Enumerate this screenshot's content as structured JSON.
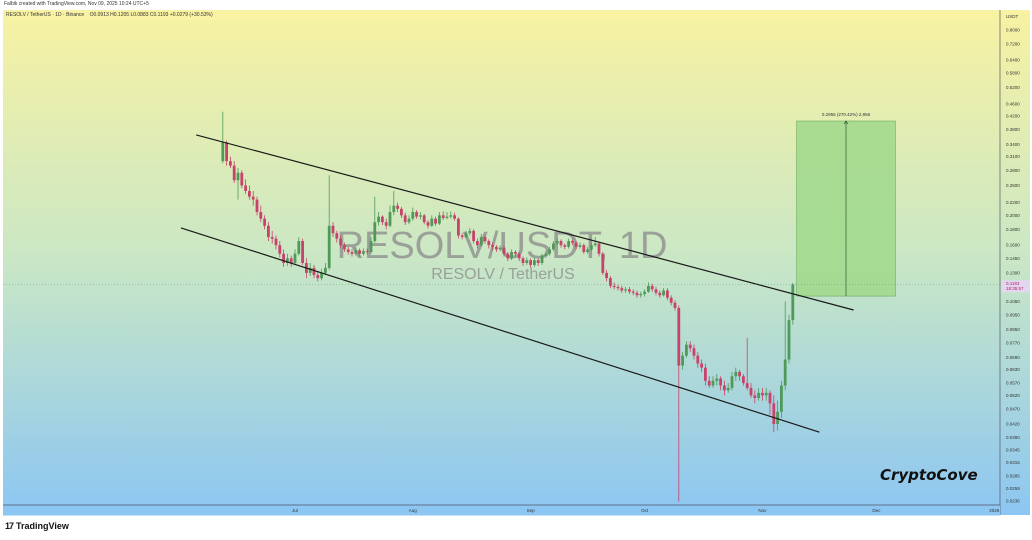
{
  "header": {
    "credit": "Falbik created with TradingView.com, Nov 09, 2025 10:24 UTC+5",
    "symbol_line": "RESOLV / TetherUS · 1D · Binance",
    "ohlc": "O0.0913 H0.1205 L0.0883 C0.1193 +0.0279 (+30.53%)"
  },
  "watermark": {
    "symbol": "RESOLV/USDT, 1D",
    "name": "RESOLV / TetherUS"
  },
  "signature": "CryptoCove",
  "footer": {
    "brand": "TradingView"
  },
  "colors": {
    "up": "#4f9a58",
    "down": "#c8436b",
    "bg_top": "#f8f2a2",
    "bg_mid": "#c9e7c6",
    "bg_bottom": "#8cc6f2",
    "measure_fill": "#9fd88a"
  },
  "chart_data": {
    "type": "candlestick",
    "interval": "1D",
    "y_scale": "log",
    "y_unit": "USDT",
    "ylim": [
      0.0236,
      0.8
    ],
    "y_ticks": [
      "0.8000",
      "0.7200",
      "0.6400",
      "0.5800",
      "0.5200",
      "0.4600",
      "0.4200",
      "0.3800",
      "0.3400",
      "0.3100",
      "0.2800",
      "0.2500",
      "0.2200",
      "0.2000",
      "0.1800",
      "0.1600",
      "0.1450",
      "0.1300",
      "0.1050",
      "0.0950",
      "0.0850",
      "0.0770",
      "0.0690",
      "0.0630",
      "0.0570",
      "0.0520",
      "0.0470",
      "0.0420",
      "0.0380",
      "0.0345",
      "0.0315",
      "0.0285",
      "0.0259",
      "0.0236"
    ],
    "x_ticks": [
      {
        "label": "Jul",
        "date": "2025-07-01"
      },
      {
        "label": "Aug",
        "date": "2025-08-01"
      },
      {
        "label": "Sep",
        "date": "2025-09-01"
      },
      {
        "label": "Oct",
        "date": "2025-10-01"
      },
      {
        "label": "Nov",
        "date": "2025-11-01"
      },
      {
        "label": "Dec",
        "date": "2025-12-01"
      },
      {
        "label": "2026",
        "date": "2026-01-01"
      }
    ],
    "last_price": {
      "value": "0.1193",
      "countdown": "18:35:57"
    },
    "start_date": "2025-06-12",
    "ohlc": [
      [
        0.3,
        0.434,
        0.295,
        0.345
      ],
      [
        0.345,
        0.35,
        0.29,
        0.3
      ],
      [
        0.3,
        0.31,
        0.285,
        0.29
      ],
      [
        0.29,
        0.3,
        0.255,
        0.26
      ],
      [
        0.26,
        0.285,
        0.225,
        0.275
      ],
      [
        0.275,
        0.28,
        0.245,
        0.25
      ],
      [
        0.25,
        0.262,
        0.235,
        0.24
      ],
      [
        0.24,
        0.25,
        0.225,
        0.23
      ],
      [
        0.23,
        0.24,
        0.215,
        0.225
      ],
      [
        0.225,
        0.23,
        0.2,
        0.205
      ],
      [
        0.205,
        0.215,
        0.19,
        0.195
      ],
      [
        0.195,
        0.2,
        0.18,
        0.185
      ],
      [
        0.185,
        0.19,
        0.165,
        0.17
      ],
      [
        0.17,
        0.178,
        0.162,
        0.168
      ],
      [
        0.168,
        0.172,
        0.155,
        0.16
      ],
      [
        0.16,
        0.165,
        0.146,
        0.15
      ],
      [
        0.15,
        0.155,
        0.136,
        0.14
      ],
      [
        0.14,
        0.15,
        0.137,
        0.145
      ],
      [
        0.145,
        0.148,
        0.136,
        0.14
      ],
      [
        0.14,
        0.155,
        0.138,
        0.15
      ],
      [
        0.15,
        0.17,
        0.148,
        0.165
      ],
      [
        0.165,
        0.168,
        0.138,
        0.14
      ],
      [
        0.14,
        0.145,
        0.125,
        0.13
      ],
      [
        0.13,
        0.14,
        0.127,
        0.135
      ],
      [
        0.135,
        0.138,
        0.125,
        0.128
      ],
      [
        0.128,
        0.132,
        0.122,
        0.125
      ],
      [
        0.125,
        0.134,
        0.123,
        0.13
      ],
      [
        0.13,
        0.14,
        0.128,
        0.135
      ],
      [
        0.135,
        0.27,
        0.133,
        0.185
      ],
      [
        0.185,
        0.19,
        0.17,
        0.175
      ],
      [
        0.175,
        0.178,
        0.163,
        0.168
      ],
      [
        0.168,
        0.172,
        0.157,
        0.16
      ],
      [
        0.16,
        0.163,
        0.152,
        0.155
      ],
      [
        0.155,
        0.158,
        0.149,
        0.152
      ],
      [
        0.152,
        0.155,
        0.147,
        0.15
      ],
      [
        0.15,
        0.158,
        0.148,
        0.154
      ],
      [
        0.154,
        0.156,
        0.147,
        0.15
      ],
      [
        0.15,
        0.156,
        0.148,
        0.153
      ],
      [
        0.153,
        0.156,
        0.149,
        0.152
      ],
      [
        0.152,
        0.17,
        0.15,
        0.165
      ],
      [
        0.165,
        0.23,
        0.163,
        0.19
      ],
      [
        0.19,
        0.205,
        0.185,
        0.198
      ],
      [
        0.198,
        0.2,
        0.186,
        0.19
      ],
      [
        0.19,
        0.195,
        0.18,
        0.185
      ],
      [
        0.185,
        0.215,
        0.183,
        0.205
      ],
      [
        0.205,
        0.24,
        0.2,
        0.215
      ],
      [
        0.215,
        0.22,
        0.205,
        0.21
      ],
      [
        0.21,
        0.213,
        0.196,
        0.2
      ],
      [
        0.2,
        0.204,
        0.186,
        0.19
      ],
      [
        0.19,
        0.2,
        0.187,
        0.195
      ],
      [
        0.195,
        0.212,
        0.192,
        0.205
      ],
      [
        0.205,
        0.208,
        0.195,
        0.198
      ],
      [
        0.198,
        0.205,
        0.194,
        0.2
      ],
      [
        0.2,
        0.202,
        0.187,
        0.19
      ],
      [
        0.19,
        0.193,
        0.181,
        0.185
      ],
      [
        0.185,
        0.2,
        0.183,
        0.195
      ],
      [
        0.195,
        0.198,
        0.185,
        0.188
      ],
      [
        0.188,
        0.205,
        0.186,
        0.2
      ],
      [
        0.2,
        0.206,
        0.193,
        0.196
      ],
      [
        0.196,
        0.205,
        0.194,
        0.198
      ],
      [
        0.198,
        0.206,
        0.195,
        0.2
      ],
      [
        0.2,
        0.204,
        0.192,
        0.195
      ],
      [
        0.195,
        0.197,
        0.168,
        0.172
      ],
      [
        0.172,
        0.175,
        0.167,
        0.17
      ],
      [
        0.17,
        0.178,
        0.168,
        0.175
      ],
      [
        0.175,
        0.182,
        0.172,
        0.178
      ],
      [
        0.178,
        0.18,
        0.162,
        0.165
      ],
      [
        0.165,
        0.168,
        0.156,
        0.16
      ],
      [
        0.16,
        0.174,
        0.158,
        0.17
      ],
      [
        0.17,
        0.172,
        0.162,
        0.165
      ],
      [
        0.165,
        0.167,
        0.156,
        0.16
      ],
      [
        0.16,
        0.163,
        0.154,
        0.158
      ],
      [
        0.158,
        0.16,
        0.152,
        0.155
      ],
      [
        0.155,
        0.16,
        0.153,
        0.157
      ],
      [
        0.157,
        0.159,
        0.147,
        0.15
      ],
      [
        0.15,
        0.152,
        0.142,
        0.145
      ],
      [
        0.145,
        0.155,
        0.143,
        0.152
      ],
      [
        0.152,
        0.154,
        0.147,
        0.15
      ],
      [
        0.15,
        0.152,
        0.142,
        0.145
      ],
      [
        0.145,
        0.147,
        0.137,
        0.14
      ],
      [
        0.14,
        0.146,
        0.138,
        0.143
      ],
      [
        0.143,
        0.145,
        0.135,
        0.138
      ],
      [
        0.138,
        0.146,
        0.136,
        0.143
      ],
      [
        0.143,
        0.145,
        0.137,
        0.14
      ],
      [
        0.14,
        0.15,
        0.138,
        0.148
      ],
      [
        0.148,
        0.153,
        0.146,
        0.15
      ],
      [
        0.15,
        0.158,
        0.148,
        0.155
      ],
      [
        0.155,
        0.165,
        0.153,
        0.162
      ],
      [
        0.162,
        0.168,
        0.16,
        0.165
      ],
      [
        0.165,
        0.167,
        0.157,
        0.16
      ],
      [
        0.16,
        0.162,
        0.155,
        0.158
      ],
      [
        0.158,
        0.168,
        0.156,
        0.165
      ],
      [
        0.165,
        0.167,
        0.16,
        0.163
      ],
      [
        0.163,
        0.165,
        0.155,
        0.158
      ],
      [
        0.158,
        0.163,
        0.156,
        0.16
      ],
      [
        0.16,
        0.162,
        0.15,
        0.152
      ],
      [
        0.152,
        0.158,
        0.15,
        0.155
      ],
      [
        0.155,
        0.163,
        0.153,
        0.16
      ],
      [
        0.16,
        0.17,
        0.158,
        0.162
      ],
      [
        0.162,
        0.164,
        0.147,
        0.15
      ],
      [
        0.15,
        0.152,
        0.128,
        0.13
      ],
      [
        0.13,
        0.133,
        0.122,
        0.125
      ],
      [
        0.125,
        0.127,
        0.116,
        0.118
      ],
      [
        0.118,
        0.121,
        0.115,
        0.117
      ],
      [
        0.117,
        0.119,
        0.114,
        0.116
      ],
      [
        0.116,
        0.118,
        0.112,
        0.114
      ],
      [
        0.114,
        0.117,
        0.112,
        0.115
      ],
      [
        0.115,
        0.117,
        0.111,
        0.113
      ],
      [
        0.113,
        0.115,
        0.11,
        0.112
      ],
      [
        0.112,
        0.114,
        0.108,
        0.11
      ],
      [
        0.11,
        0.113,
        0.108,
        0.111
      ],
      [
        0.111,
        0.115,
        0.109,
        0.113
      ],
      [
        0.113,
        0.121,
        0.112,
        0.118
      ],
      [
        0.118,
        0.12,
        0.113,
        0.115
      ],
      [
        0.115,
        0.117,
        0.11,
        0.112
      ],
      [
        0.112,
        0.114,
        0.108,
        0.11
      ],
      [
        0.11,
        0.116,
        0.109,
        0.114
      ],
      [
        0.114,
        0.116,
        0.106,
        0.108
      ],
      [
        0.108,
        0.11,
        0.102,
        0.104
      ],
      [
        0.104,
        0.106,
        0.098,
        0.1
      ],
      [
        0.1,
        0.102,
        0.0235,
        0.065
      ],
      [
        0.065,
        0.072,
        0.063,
        0.07
      ],
      [
        0.07,
        0.078,
        0.069,
        0.076
      ],
      [
        0.076,
        0.078,
        0.072,
        0.074
      ],
      [
        0.074,
        0.076,
        0.068,
        0.07
      ],
      [
        0.07,
        0.072,
        0.064,
        0.066
      ],
      [
        0.066,
        0.068,
        0.062,
        0.064
      ],
      [
        0.064,
        0.066,
        0.056,
        0.058
      ],
      [
        0.058,
        0.06,
        0.055,
        0.056
      ],
      [
        0.056,
        0.06,
        0.055,
        0.058
      ],
      [
        0.058,
        0.061,
        0.056,
        0.059
      ],
      [
        0.059,
        0.06,
        0.054,
        0.056
      ],
      [
        0.056,
        0.058,
        0.052,
        0.054
      ],
      [
        0.054,
        0.057,
        0.053,
        0.055
      ],
      [
        0.055,
        0.062,
        0.054,
        0.06
      ],
      [
        0.06,
        0.064,
        0.058,
        0.062
      ],
      [
        0.062,
        0.063,
        0.058,
        0.06
      ],
      [
        0.06,
        0.061,
        0.056,
        0.057
      ],
      [
        0.057,
        0.08,
        0.054,
        0.055
      ],
      [
        0.055,
        0.057,
        0.051,
        0.052
      ],
      [
        0.052,
        0.054,
        0.049,
        0.051
      ],
      [
        0.051,
        0.055,
        0.05,
        0.053
      ],
      [
        0.053,
        0.055,
        0.05,
        0.052
      ],
      [
        0.052,
        0.055,
        0.05,
        0.053
      ],
      [
        0.053,
        0.054,
        0.045,
        0.049
      ],
      [
        0.049,
        0.052,
        0.0395,
        0.042
      ],
      [
        0.042,
        0.05,
        0.04,
        0.046
      ],
      [
        0.046,
        0.058,
        0.044,
        0.056
      ],
      [
        0.056,
        0.105,
        0.054,
        0.068
      ],
      [
        0.068,
        0.095,
        0.066,
        0.0913
      ],
      [
        0.0913,
        0.1205,
        0.0883,
        0.1193
      ]
    ],
    "trendlines": [
      {
        "from": {
          "date": "2025-06-05",
          "price": 0.365
        },
        "to": {
          "date": "2025-11-25",
          "price": 0.0985
        }
      },
      {
        "from": {
          "date": "2025-06-01",
          "price": 0.182
        },
        "to": {
          "date": "2025-11-16",
          "price": 0.0395
        }
      }
    ],
    "price_range_measure": {
      "from_date": "2025-11-10",
      "to_date": "2025-12-06",
      "low": 0.1093,
      "high": 0.4049,
      "label": "0.2956 (270.42%) 2,956"
    }
  }
}
